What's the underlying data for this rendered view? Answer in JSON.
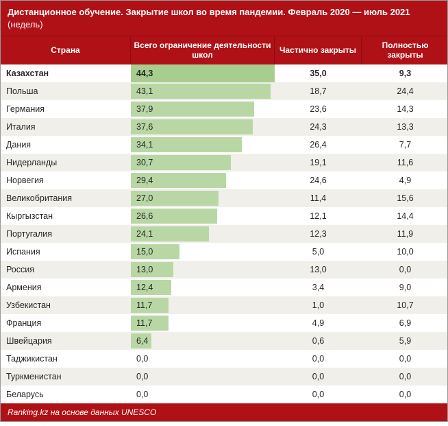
{
  "title_main": "Дистанционное обучение. Закрытие школ во время пандемии. Февраль 2020 — июль 2021",
  "title_unit": "(недель)",
  "headers": {
    "country": "Страна",
    "total": "Всего ограничение деятельности школ",
    "partial": "Частично закрыты",
    "full": "Полностью закрыты"
  },
  "chart": {
    "bar_color": "#b9d7a4",
    "bar_color_highlight": "#a7ce8e",
    "max_value": 44.3,
    "background_color": "#ffffff",
    "alt_row_color": "#f1efea",
    "header_color": "#b01116",
    "text_color": "#262626"
  },
  "rows": [
    {
      "country": "Казахстан",
      "total": "44,3",
      "total_v": 44.3,
      "partial": "35,0",
      "full": "9,3",
      "highlight": true
    },
    {
      "country": "Польша",
      "total": "43,1",
      "total_v": 43.1,
      "partial": "18,7",
      "full": "24,4"
    },
    {
      "country": "Германия",
      "total": "37,9",
      "total_v": 37.9,
      "partial": "23,6",
      "full": "14,3"
    },
    {
      "country": "Италия",
      "total": "37,6",
      "total_v": 37.6,
      "partial": "24,3",
      "full": "13,3"
    },
    {
      "country": "Дания",
      "total": "34,1",
      "total_v": 34.1,
      "partial": "26,4",
      "full": "7,7"
    },
    {
      "country": "Нидерланды",
      "total": "30,7",
      "total_v": 30.7,
      "partial": "19,1",
      "full": "11,6"
    },
    {
      "country": "Норвегия",
      "total": "29,4",
      "total_v": 29.4,
      "partial": "24,6",
      "full": "4,9"
    },
    {
      "country": "Великобритания",
      "total": "27,0",
      "total_v": 27.0,
      "partial": "11,4",
      "full": "15,6"
    },
    {
      "country": "Кыргызстан",
      "total": "26,6",
      "total_v": 26.6,
      "partial": "12,1",
      "full": "14,4"
    },
    {
      "country": "Португалия",
      "total": "24,1",
      "total_v": 24.1,
      "partial": "12,3",
      "full": "11,9"
    },
    {
      "country": "Испания",
      "total": "15,0",
      "total_v": 15.0,
      "partial": "5,0",
      "full": "10,0"
    },
    {
      "country": "Россия",
      "total": "13,0",
      "total_v": 13.0,
      "partial": "13,0",
      "full": "0,0"
    },
    {
      "country": "Армения",
      "total": "12,4",
      "total_v": 12.4,
      "partial": "3,4",
      "full": "9,0"
    },
    {
      "country": "Узбекистан",
      "total": "11,7",
      "total_v": 11.7,
      "partial": "1,0",
      "full": "10,7"
    },
    {
      "country": "Франция",
      "total": "11,7",
      "total_v": 11.7,
      "partial": "4,9",
      "full": "6,9"
    },
    {
      "country": "Швейцария",
      "total": "6,4",
      "total_v": 6.4,
      "partial": "0,6",
      "full": "5,9"
    },
    {
      "country": "Таджикистан",
      "total": "0,0",
      "total_v": 0.0,
      "partial": "0,0",
      "full": "0,0"
    },
    {
      "country": "Туркменистан",
      "total": "0,0",
      "total_v": 0.0,
      "partial": "0,0",
      "full": "0,0"
    },
    {
      "country": "Беларусь",
      "total": "0,0",
      "total_v": 0.0,
      "partial": "0,0",
      "full": "0,0"
    }
  ],
  "footer": "Ranking.kz на основе данных UNESCO"
}
